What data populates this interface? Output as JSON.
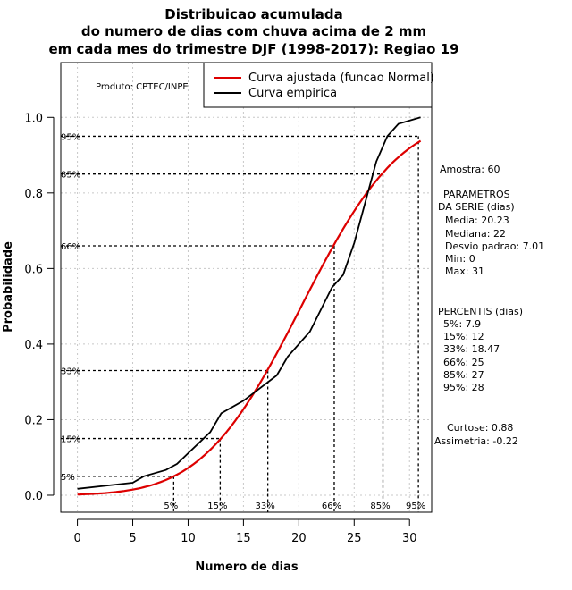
{
  "chart_data": {
    "type": "line",
    "title": [
      "Distribuicao acumulada",
      "do numero de dias com chuva acima de 2 mm",
      "em cada mes do trimestre DJF (1998-2017): Regiao 19"
    ],
    "xlabel": "Numero de dias",
    "ylabel": "Probabilidade",
    "xlim": [
      -1.5,
      32
    ],
    "ylim": [
      -0.045,
      1.145
    ],
    "x_ticks": [
      0,
      5,
      10,
      15,
      20,
      25,
      30
    ],
    "y_ticks": [
      0.0,
      0.2,
      0.4,
      0.6,
      0.8,
      1.0
    ],
    "y_tick_labels": [
      "0.0",
      "0.2",
      "0.4",
      "0.6",
      "0.8",
      "1.0"
    ],
    "grid": true,
    "credit": "Produto: CPTEC/INPE",
    "legend": {
      "position": "top-right",
      "entries": [
        {
          "label": "Curva ajustada (funcao Normal)",
          "color": "#dd0000"
        },
        {
          "label": "Curva empirica",
          "color": "#000000"
        }
      ]
    },
    "series": [
      {
        "name": "Curva ajustada (funcao Normal)",
        "color": "#dd0000",
        "distribution": "normal",
        "mean": 20.23,
        "sd": 7.01,
        "x_range": [
          0,
          31
        ]
      },
      {
        "name": "Curva empirica",
        "color": "#000000",
        "x": [
          0,
          5,
          6,
          8,
          9,
          12,
          13,
          15,
          18,
          19,
          21,
          23,
          24,
          25,
          27,
          28,
          29,
          31
        ],
        "y": [
          0.017,
          0.033,
          0.05,
          0.067,
          0.083,
          0.167,
          0.217,
          0.25,
          0.317,
          0.367,
          0.433,
          0.55,
          0.583,
          0.667,
          0.883,
          0.95,
          0.983,
          1.0
        ]
      }
    ],
    "percentile_markers": [
      {
        "label": "5%",
        "p": 0.05,
        "x": 8.7
      },
      {
        "label": "15%",
        "p": 0.15,
        "x": 12.9
      },
      {
        "label": "33%",
        "p": 0.33,
        "x": 17.2
      },
      {
        "label": "66%",
        "p": 0.66,
        "x": 23.2
      },
      {
        "label": "85%",
        "p": 0.85,
        "x": 27.6
      },
      {
        "label": "95%",
        "p": 0.95,
        "x": 30.8
      }
    ],
    "stats": {
      "amostra": "Amostra: 60",
      "parametros_heading": [
        "PARAMETROS",
        "DA SERIE (dias)"
      ],
      "parametros": [
        "Media: 20.23",
        "Mediana: 22",
        "Desvio padrao: 7.01",
        "Min: 0",
        "Max: 31"
      ],
      "percentis_heading": "PERCENTIS (dias)",
      "percentis": [
        "5%: 7.9",
        "15%: 12",
        "33%: 18.47",
        "66%: 25",
        "85%: 27",
        "95%: 28"
      ],
      "curtose": "Curtose: 0.88",
      "assimetria": "Assimetria: -0.22"
    }
  }
}
